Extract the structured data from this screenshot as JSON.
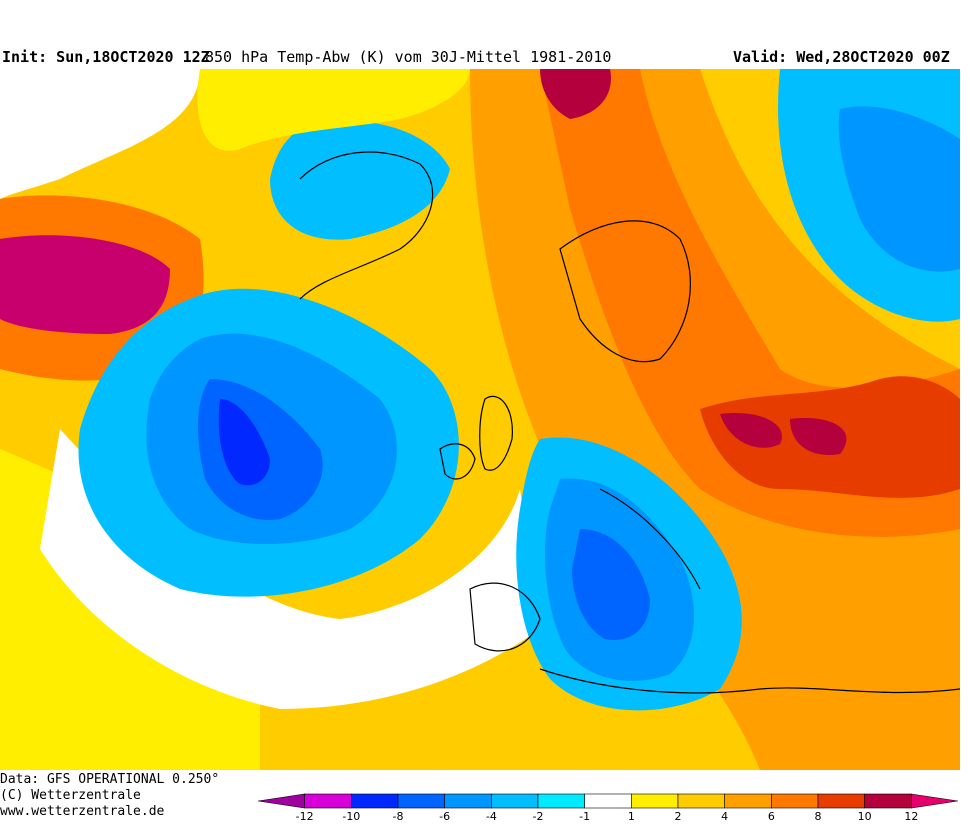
{
  "header": {
    "init": "Init: Sun,18OCT2020 12Z",
    "title": "850 hPa Temp-Abw (K) vom 30J-Mittel 1981-2010",
    "valid": "Valid: Wed,28OCT2020 00Z"
  },
  "footer": {
    "data_source": "Data: GFS OPERATIONAL 0.250°",
    "copyright": "(C) Wetterzentrale",
    "website": "www.wetterzentrale.de"
  },
  "legend": {
    "ticks": [
      "-12",
      "-10",
      "-8",
      "-6",
      "-4",
      "-2",
      "-1",
      "1",
      "2",
      "4",
      "6",
      "8",
      "10",
      "12"
    ],
    "colors": [
      "#a000a0",
      "#d800d8",
      "#0028ff",
      "#0064ff",
      "#0096ff",
      "#00beff",
      "#00eaff",
      "#ffffff",
      "#ffee00",
      "#ffcc00",
      "#ffa000",
      "#ff7800",
      "#e63c00",
      "#b4003c",
      "#e6006e"
    ]
  },
  "map": {
    "palette": {
      "ocean_neutral": "#ffcc00",
      "strong_cold": "#0028ff",
      "cold": "#0064ff",
      "cool": "#00beff",
      "near_zero": "#ffffff",
      "warm": "#ffa000",
      "hot": "#e63c00",
      "very_hot": "#b4003c",
      "extreme_hot": "#c8006e",
      "coastline": "#000000"
    }
  }
}
